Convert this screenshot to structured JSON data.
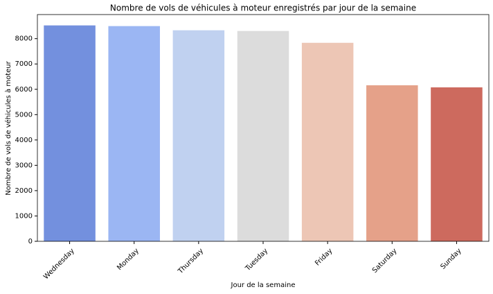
{
  "chart_data": {
    "type": "bar",
    "title": "Nombre de vols de véhicules à moteur enregistrés par jour de la semaine",
    "x_label": "Jour de la semaine",
    "y_label": "Nombre de vols de véhicules à moteur",
    "categories": [
      "Wednesday",
      "Monday",
      "Thursday",
      "Tuesday",
      "Friday",
      "Saturday",
      "Sunday"
    ],
    "values": [
      8522,
      8495,
      8330,
      8302,
      7835,
      6158,
      6076
    ],
    "colors": [
      "#7390de",
      "#9bb6f3",
      "#c0d1f0",
      "#dcdcdc",
      "#edc6b5",
      "#e5a189",
      "#cd6a5e"
    ],
    "ylim": [
      0,
      8950
    ],
    "yticks": [
      0,
      1000,
      2000,
      3000,
      4000,
      5000,
      6000,
      7000,
      8000
    ],
    "grid": false
  }
}
